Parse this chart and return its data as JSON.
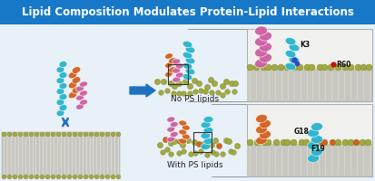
{
  "title": "Lipid Composition Modulates Protein-Lipid Interactions",
  "title_bg": "#1878c8",
  "title_color": "#ffffff",
  "title_fontsize": 8.5,
  "bg_color": "#e8f0f8",
  "label_no_ps": "No PS lipids",
  "label_with_ps": "With PS lipids",
  "label_k3": "K3",
  "label_r60": "R60",
  "label_g18": "G18",
  "label_f19": "F19",
  "color_orange": "#d4601e",
  "color_cyan": "#28b4cc",
  "color_pink": "#cc60a0",
  "color_olive": "#a0aa40",
  "color_gray_mem": "#c8c8c0",
  "color_white": "#f0f0ee",
  "color_blue_arrow": "#2070c0",
  "color_panel_bg": "#e0e8f0",
  "color_panel_border": "#aabbcc",
  "figsize": [
    4.13,
    2.0
  ],
  "dpi": 100
}
